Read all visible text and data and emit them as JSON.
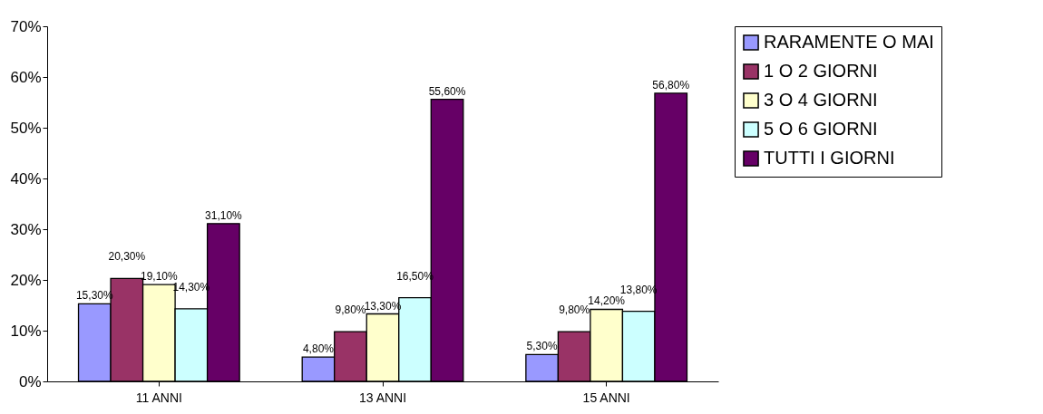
{
  "chart_data": {
    "type": "bar",
    "categories": [
      "11 ANNI",
      "13 ANNI",
      "15 ANNI"
    ],
    "series": [
      {
        "name": "RARAMENTE O MAI",
        "color": "#9999ff",
        "values": [
          15.3,
          4.8,
          5.3
        ],
        "value_labels": [
          "15,30%",
          "4,80%",
          "5,30%"
        ]
      },
      {
        "name": "1 O 2 GIORNI",
        "color": "#993366",
        "values": [
          20.3,
          9.8,
          9.8
        ],
        "value_labels": [
          "20,30%",
          "9,80%",
          "9,80%"
        ]
      },
      {
        "name": "3 O 4 GIORNI",
        "color": "#ffffcc",
        "values": [
          19.1,
          13.3,
          14.2
        ],
        "value_labels": [
          "19,10%",
          "13,30%",
          "14,20%"
        ]
      },
      {
        "name": "5 O 6 GIORNI",
        "color": "#ccffff",
        "values": [
          14.3,
          16.5,
          13.8
        ],
        "value_labels": [
          "14,30%",
          "16,50%",
          "13,80%"
        ]
      },
      {
        "name": "TUTTI I GIORNI",
        "color": "#660066",
        "values": [
          31.1,
          55.6,
          56.8
        ],
        "value_labels": [
          "31,10%",
          "55,60%",
          "56,80%"
        ]
      }
    ],
    "ylim": [
      0,
      70
    ],
    "yticks": [
      {
        "value": 0,
        "label": "0%"
      },
      {
        "value": 10,
        "label": "10%"
      },
      {
        "value": 20,
        "label": "20%"
      },
      {
        "value": 30,
        "label": "30%"
      },
      {
        "value": 40,
        "label": "40%"
      },
      {
        "value": 50,
        "label": "50%"
      },
      {
        "value": 60,
        "label": "60%"
      },
      {
        "value": 70,
        "label": "70%"
      }
    ],
    "grid": false,
    "legend": "right"
  }
}
